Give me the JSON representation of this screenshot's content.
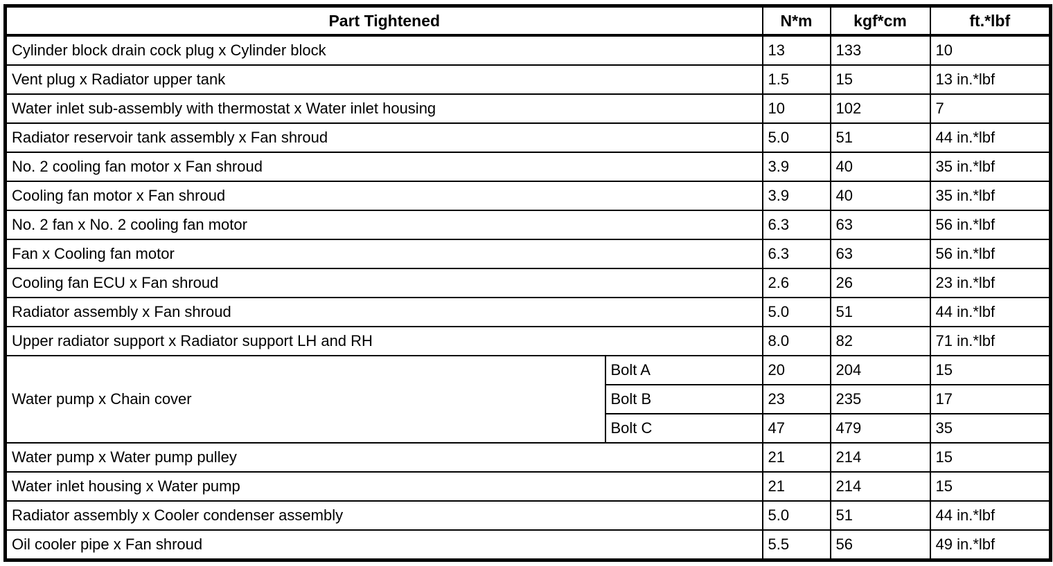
{
  "table": {
    "headers": {
      "part": "Part Tightened",
      "nm": "N*m",
      "kgfcm": "kgf*cm",
      "ftlbf": "ft.*lbf"
    },
    "rows": [
      {
        "part": "Cylinder block drain cock plug x Cylinder block",
        "nm": "13",
        "kgfcm": "133",
        "ftlbf": "10"
      },
      {
        "part": "Vent plug x Radiator upper tank",
        "nm": "1.5",
        "kgfcm": "15",
        "ftlbf": "13 in.*lbf"
      },
      {
        "part": "Water inlet sub-assembly with thermostat x Water inlet housing",
        "nm": "10",
        "kgfcm": "102",
        "ftlbf": "7"
      },
      {
        "part": "Radiator reservoir tank assembly x Fan shroud",
        "nm": "5.0",
        "kgfcm": "51",
        "ftlbf": "44 in.*lbf"
      },
      {
        "part": "No. 2 cooling fan motor x Fan shroud",
        "nm": "3.9",
        "kgfcm": "40",
        "ftlbf": "35 in.*lbf"
      },
      {
        "part": "Cooling fan motor x Fan shroud",
        "nm": "3.9",
        "kgfcm": "40",
        "ftlbf": "35 in.*lbf"
      },
      {
        "part": "No. 2 fan x No. 2 cooling fan motor",
        "nm": "6.3",
        "kgfcm": "63",
        "ftlbf": "56 in.*lbf"
      },
      {
        "part": "Fan x Cooling fan motor",
        "nm": "6.3",
        "kgfcm": "63",
        "ftlbf": "56 in.*lbf"
      },
      {
        "part": "Cooling fan ECU x Fan shroud",
        "nm": "2.6",
        "kgfcm": "26",
        "ftlbf": "23 in.*lbf"
      },
      {
        "part": "Radiator assembly x Fan shroud",
        "nm": "5.0",
        "kgfcm": "51",
        "ftlbf": "44 in.*lbf"
      },
      {
        "part": "Upper radiator support x Radiator support LH and RH",
        "nm": "8.0",
        "kgfcm": "82",
        "ftlbf": "71 in.*lbf"
      },
      {
        "part": "Water pump x Chain cover",
        "subrows": [
          {
            "label": "Bolt A",
            "nm": "20",
            "kgfcm": "204",
            "ftlbf": "15"
          },
          {
            "label": "Bolt B",
            "nm": "23",
            "kgfcm": "235",
            "ftlbf": "17"
          },
          {
            "label": "Bolt C",
            "nm": "47",
            "kgfcm": "479",
            "ftlbf": "35"
          }
        ]
      },
      {
        "part": "Water pump x Water pump pulley",
        "nm": "21",
        "kgfcm": "214",
        "ftlbf": "15"
      },
      {
        "part": "Water inlet housing x Water pump",
        "nm": "21",
        "kgfcm": "214",
        "ftlbf": "15"
      },
      {
        "part": "Radiator assembly x Cooler condenser assembly",
        "nm": "5.0",
        "kgfcm": "51",
        "ftlbf": "44 in.*lbf"
      },
      {
        "part": "Oil cooler pipe x Fan shroud",
        "nm": "5.5",
        "kgfcm": "56",
        "ftlbf": "49 in.*lbf"
      }
    ]
  }
}
